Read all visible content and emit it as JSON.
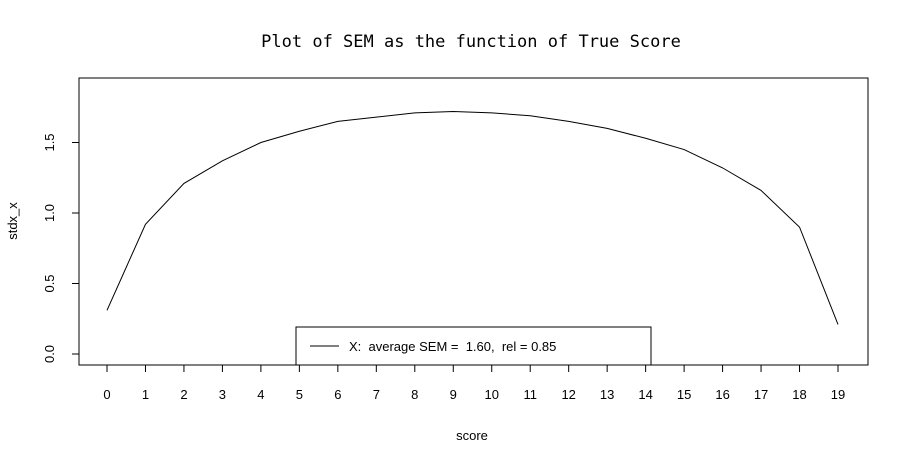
{
  "chart_data": {
    "type": "line",
    "title": "Plot of SEM as the function of True Score",
    "xlabel": "score",
    "ylabel": "stdx_x",
    "xlim": [
      0,
      19
    ],
    "ylim": [
      0.0,
      1.85
    ],
    "x_ticks": [
      "0",
      "1",
      "2",
      "3",
      "4",
      "5",
      "6",
      "7",
      "8",
      "9",
      "10",
      "11",
      "12",
      "13",
      "14",
      "15",
      "16",
      "17",
      "18",
      "19"
    ],
    "y_ticks": [
      "0.0",
      "0.5",
      "1.0",
      "1.5"
    ],
    "y_tick_values": [
      0.0,
      0.5,
      1.0,
      1.5
    ],
    "grid": false,
    "legend_position": "bottom-center",
    "series": [
      {
        "name": "X:  average SEM =  1.60,  rel = 0.85",
        "color": "#000000",
        "x": [
          0,
          1,
          2,
          3,
          4,
          5,
          6,
          7,
          8,
          9,
          10,
          11,
          12,
          13,
          14,
          15,
          16,
          17,
          18,
          19
        ],
        "values": [
          0.31,
          0.92,
          1.21,
          1.37,
          1.5,
          1.58,
          1.65,
          1.68,
          1.71,
          1.72,
          1.71,
          1.69,
          1.65,
          1.6,
          1.53,
          1.45,
          1.32,
          1.16,
          0.9,
          0.21
        ]
      }
    ]
  }
}
